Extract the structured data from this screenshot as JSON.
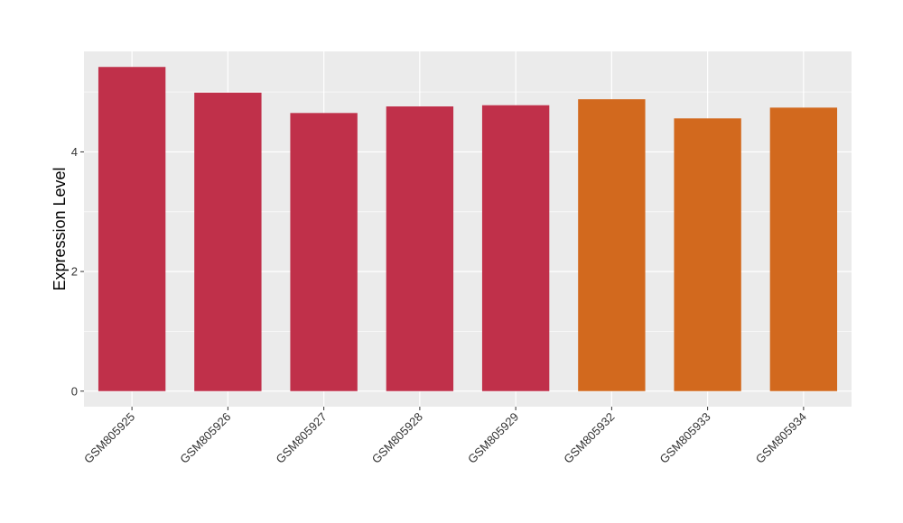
{
  "chart_data": {
    "type": "bar",
    "title": "",
    "xlabel": "",
    "ylabel": "Expression Level",
    "categories": [
      "GSM805925",
      "GSM805926",
      "GSM805927",
      "GSM805928",
      "GSM805929",
      "GSM805932",
      "GSM805933",
      "GSM805934"
    ],
    "values": [
      5.42,
      4.99,
      4.65,
      4.76,
      4.78,
      4.88,
      4.56,
      4.74
    ],
    "bar_colors": [
      "#C0304A",
      "#C0304A",
      "#C0304A",
      "#C0304A",
      "#C0304A",
      "#D2691E",
      "#D2691E",
      "#D2691E"
    ],
    "ylim": [
      -0.26,
      5.68
    ],
    "yticks": [
      0,
      2,
      4
    ],
    "grid": true,
    "legend": "none",
    "panel_background": "#EBEBEB",
    "grid_color": "#FFFFFF"
  }
}
